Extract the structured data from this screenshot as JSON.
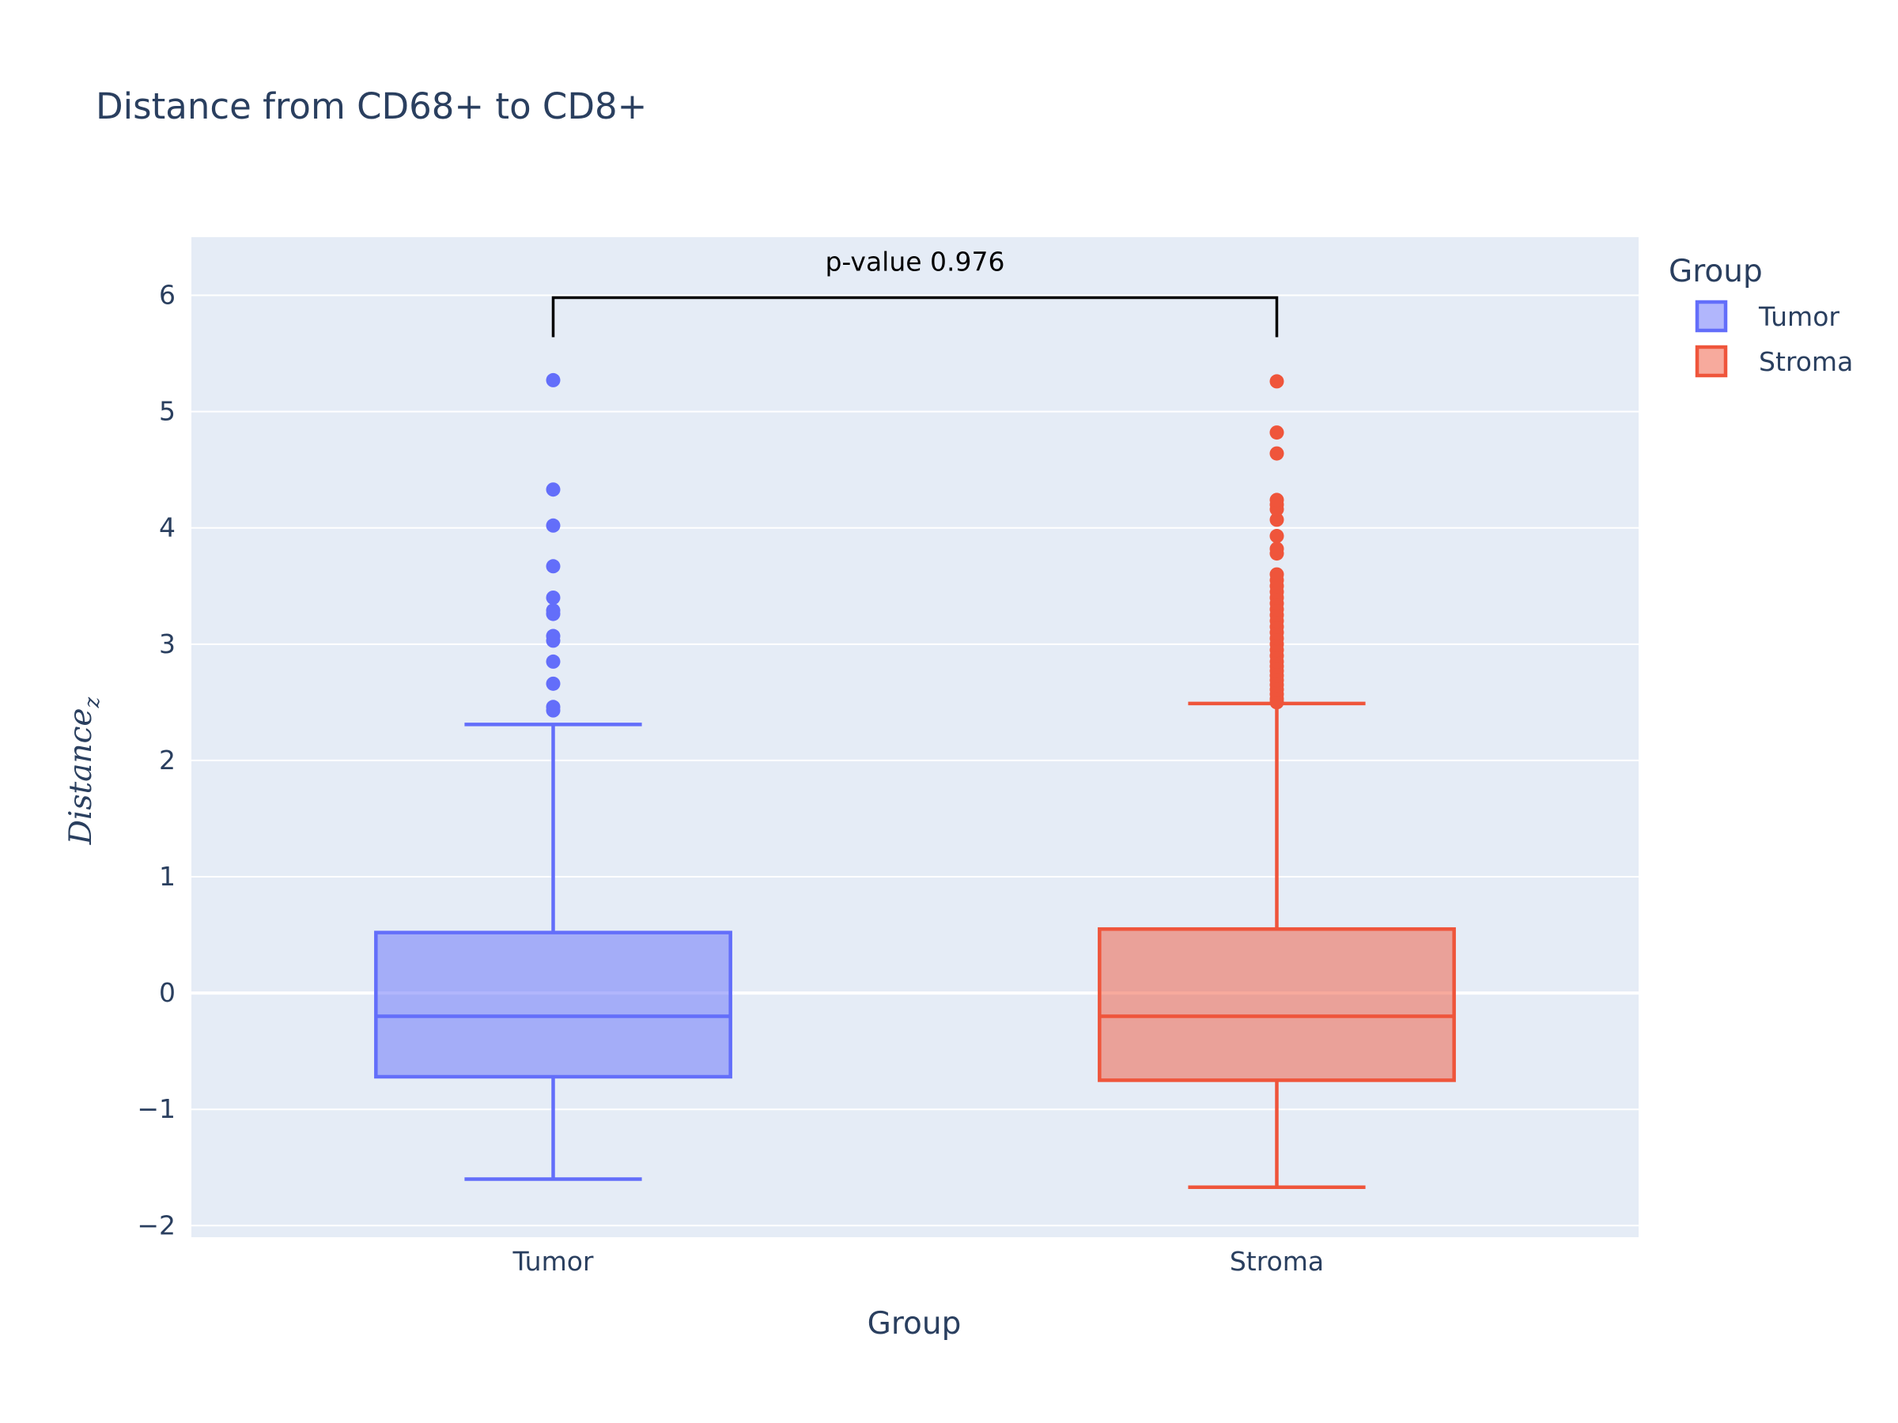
{
  "chart_data": {
    "type": "box",
    "title": "Distance from CD68+ to CD8+",
    "xlabel": "Group",
    "ylabel": "Distance",
    "ylabel_subscript": "z",
    "ylim": [
      -2.1,
      6.5
    ],
    "yticks": [
      -2,
      -1,
      0,
      1,
      2,
      3,
      4,
      5,
      6
    ],
    "ytick_labels": [
      "−2",
      "−1",
      "0",
      "1",
      "2",
      "3",
      "4",
      "5",
      "6"
    ],
    "categories": [
      "Tumor",
      "Stroma"
    ],
    "grid": true,
    "legend": {
      "title": "Group",
      "placement": "top-right",
      "entries": [
        "Tumor",
        "Stroma"
      ]
    },
    "series": [
      {
        "name": "Tumor",
        "color": "#636efa",
        "lower_whisker": -1.6,
        "q1": -0.72,
        "median": -0.2,
        "q3": 0.52,
        "upper_whisker": 2.31,
        "outliers": [
          2.43,
          2.46,
          2.66,
          2.85,
          3.03,
          3.07,
          3.26,
          3.29,
          3.4,
          3.67,
          4.02,
          4.33,
          5.27
        ]
      },
      {
        "name": "Stroma",
        "color": "#ef553b",
        "lower_whisker": -1.67,
        "q1": -0.75,
        "median": -0.2,
        "q3": 0.55,
        "upper_whisker": 2.49,
        "outliers": [
          2.5,
          2.53,
          2.57,
          2.61,
          2.65,
          2.69,
          2.73,
          2.77,
          2.81,
          2.85,
          2.9,
          2.95,
          3.0,
          3.05,
          3.1,
          3.15,
          3.2,
          3.25,
          3.3,
          3.35,
          3.4,
          3.45,
          3.5,
          3.55,
          3.6,
          3.78,
          3.82,
          3.93,
          4.07,
          4.16,
          4.2,
          4.24,
          4.64,
          4.82,
          5.26
        ]
      }
    ],
    "annotation": {
      "text": "p-value 0.976",
      "bracket_y": 5.98,
      "bracket_foot_y": 5.64
    }
  }
}
